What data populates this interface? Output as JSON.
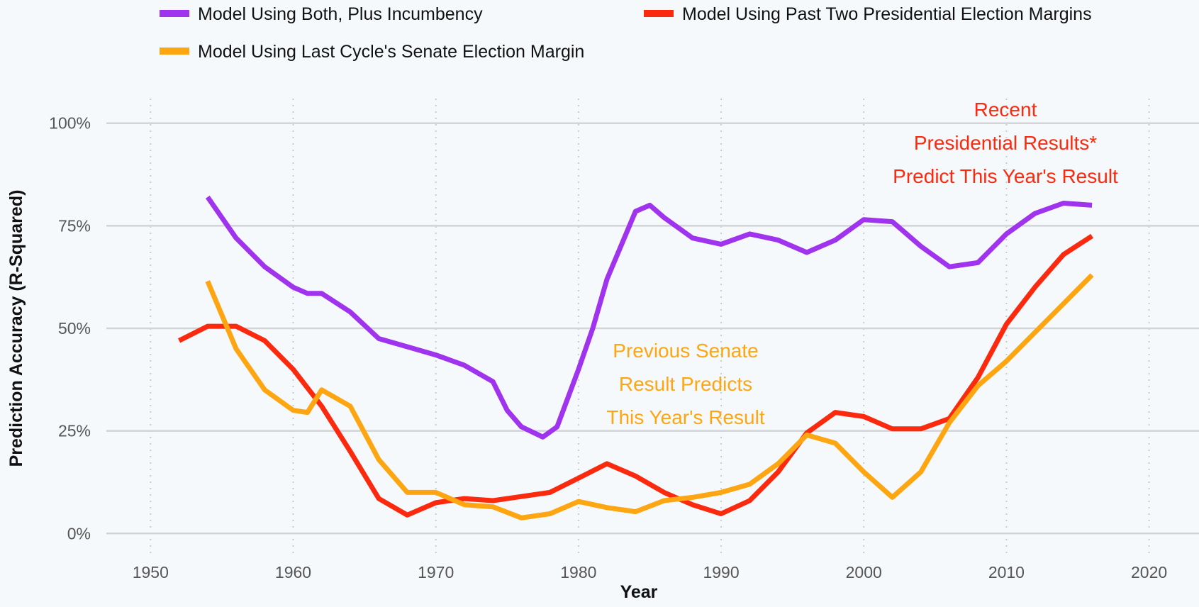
{
  "chart_data": {
    "type": "line",
    "x_label": "Year",
    "y_label": "Prediction Accuracy (R-Squared)",
    "xlim": [
      1947.3,
      2023.5
    ],
    "xticks": [
      1950,
      1960,
      1970,
      1980,
      1990,
      2000,
      2010,
      2020
    ],
    "ylim": [
      -6,
      106
    ],
    "yticks": [
      {
        "value": 0,
        "label": "0%"
      },
      {
        "value": 25,
        "label": "25%"
      },
      {
        "value": 50,
        "label": "50%"
      },
      {
        "value": 75,
        "label": "75%"
      },
      {
        "value": 100,
        "label": "100%"
      }
    ],
    "grid": true,
    "series": [
      {
        "name": "Model Using Both, Plus Incumbency",
        "color": "#a033ee",
        "x": [
          1954,
          1956,
          1958,
          1960,
          1961,
          1962,
          1964,
          1966,
          1968,
          1970,
          1972,
          1974,
          1975,
          1976,
          1977.5,
          1978.5,
          1980,
          1981,
          1982,
          1984,
          1985,
          1986,
          1988,
          1990,
          1992,
          1994,
          1996,
          1998,
          2000,
          2002,
          2004,
          2006,
          2008,
          2010,
          2012,
          2014,
          2016
        ],
        "values": [
          82,
          72,
          65,
          60,
          58.5,
          58.5,
          54,
          47.5,
          45.5,
          43.5,
          41,
          37,
          30,
          26,
          23.5,
          26,
          40,
          50,
          62,
          78.5,
          80,
          77,
          72,
          70.5,
          73,
          71.5,
          68.5,
          71.5,
          76.5,
          76,
          70,
          65,
          66,
          73,
          78,
          80.5,
          80
        ]
      },
      {
        "name": "Model Using Past Two Presidential Election Margins",
        "color": "#fb2a0f",
        "x": [
          1952,
          1954,
          1956,
          1958,
          1960,
          1962,
          1964,
          1966,
          1968,
          1970,
          1972,
          1974,
          1976,
          1978,
          1980,
          1982,
          1984,
          1986,
          1988,
          1990,
          1992,
          1994,
          1996,
          1998,
          2000,
          2002,
          2004,
          2006,
          2008,
          2010,
          2012,
          2014,
          2016
        ],
        "values": [
          47,
          50.5,
          50.5,
          47,
          40,
          31,
          20,
          8.5,
          4.5,
          7.5,
          8.5,
          8,
          9,
          10,
          13.5,
          17,
          14,
          10,
          7,
          4.8,
          8,
          15,
          24.5,
          29.5,
          28.5,
          25.5,
          25.5,
          28,
          38,
          51,
          60,
          68,
          72.5
        ]
      },
      {
        "name": "Model Using Last Cycle's Senate Election Margin",
        "color": "#fea611",
        "x": [
          1954,
          1956,
          1958,
          1960,
          1961,
          1962,
          1964,
          1966,
          1968,
          1970,
          1972,
          1974,
          1976,
          1978,
          1980,
          1982,
          1984,
          1986,
          1988,
          1990,
          1992,
          1994,
          1996,
          1998,
          2000,
          2002,
          2004,
          2006,
          2008,
          2010,
          2012,
          2014,
          2016
        ],
        "values": [
          61.5,
          45,
          35,
          30,
          29.5,
          35,
          31,
          18,
          10,
          10,
          7,
          6.5,
          3.8,
          4.8,
          7.8,
          6.3,
          5.3,
          8,
          8.8,
          10,
          12,
          17,
          24,
          22,
          15,
          8.8,
          15,
          27,
          36,
          42,
          49,
          56,
          63
        ]
      }
    ],
    "annotations": [
      {
        "lines": [
          "Previous Senate",
          "Result Predicts",
          "This Year's Result"
        ],
        "color": "#fea611"
      },
      {
        "lines": [
          "Recent",
          "Presidential Results*",
          "Predict This Year's Result"
        ],
        "color": "#fb2a0f"
      }
    ]
  }
}
